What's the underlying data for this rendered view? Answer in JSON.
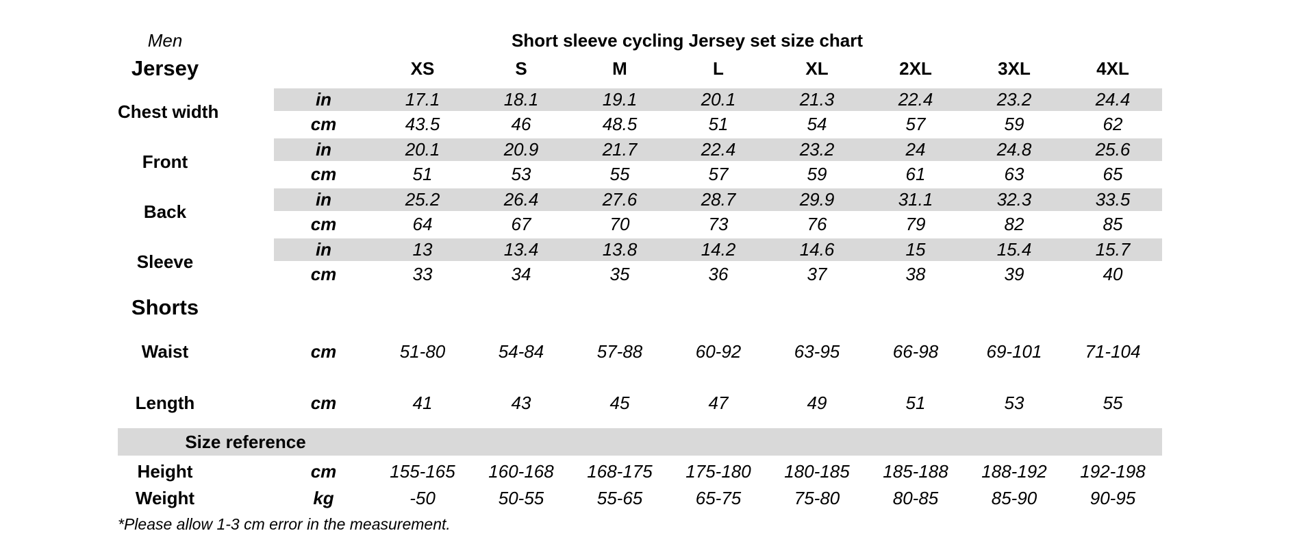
{
  "page": {
    "background": "#ffffff",
    "band_color": "#d9d9d9",
    "text_color": "#000000"
  },
  "header": {
    "gender": "Men",
    "title": "Short sleeve cycling Jersey set size chart"
  },
  "sizes": [
    "XS",
    "S",
    "M",
    "L",
    "XL",
    "2XL",
    "3XL",
    "4XL"
  ],
  "units": {
    "in": "in",
    "cm": "cm",
    "kg": "kg"
  },
  "jersey": {
    "section_label": "Jersey",
    "rows": [
      {
        "label": "Chest width",
        "in": [
          "17.1",
          "18.1",
          "19.1",
          "20.1",
          "21.3",
          "22.4",
          "23.2",
          "24.4"
        ],
        "cm": [
          "43.5",
          "46",
          "48.5",
          "51",
          "54",
          "57",
          "59",
          "62"
        ]
      },
      {
        "label": "Front",
        "in": [
          "20.1",
          "20.9",
          "21.7",
          "22.4",
          "23.2",
          "24",
          "24.8",
          "25.6"
        ],
        "cm": [
          "51",
          "53",
          "55",
          "57",
          "59",
          "61",
          "63",
          "65"
        ]
      },
      {
        "label": "Back",
        "in": [
          "25.2",
          "26.4",
          "27.6",
          "28.7",
          "29.9",
          "31.1",
          "32.3",
          "33.5"
        ],
        "cm": [
          "64",
          "67",
          "70",
          "73",
          "76",
          "79",
          "82",
          "85"
        ]
      },
      {
        "label": "Sleeve",
        "in": [
          "13",
          "13.4",
          "13.8",
          "14.2",
          "14.6",
          "15",
          "15.4",
          "15.7"
        ],
        "cm": [
          "33",
          "34",
          "35",
          "36",
          "37",
          "38",
          "39",
          "40"
        ]
      }
    ]
  },
  "shorts": {
    "section_label": "Shorts",
    "rows": [
      {
        "label": "Waist",
        "unit": "cm",
        "values": [
          "51-80",
          "54-84",
          "57-88",
          "60-92",
          "63-95",
          "66-98",
          "69-101",
          "71-104"
        ]
      },
      {
        "label": "Length",
        "unit": "cm",
        "values": [
          "41",
          "43",
          "45",
          "47",
          "49",
          "51",
          "53",
          "55"
        ]
      }
    ]
  },
  "size_reference": {
    "section_label": "Size reference",
    "rows": [
      {
        "label": "Height",
        "unit": "cm",
        "values": [
          "155-165",
          "160-168",
          "168-175",
          "175-180",
          "180-185",
          "185-188",
          "188-192",
          "192-198"
        ]
      },
      {
        "label": "Weight",
        "unit": "kg",
        "values": [
          "-50",
          "50-55",
          "55-65",
          "65-75",
          "75-80",
          "80-85",
          "85-90",
          "90-95"
        ]
      }
    ]
  },
  "footnote": "*Please allow 1-3 cm error in the measurement."
}
